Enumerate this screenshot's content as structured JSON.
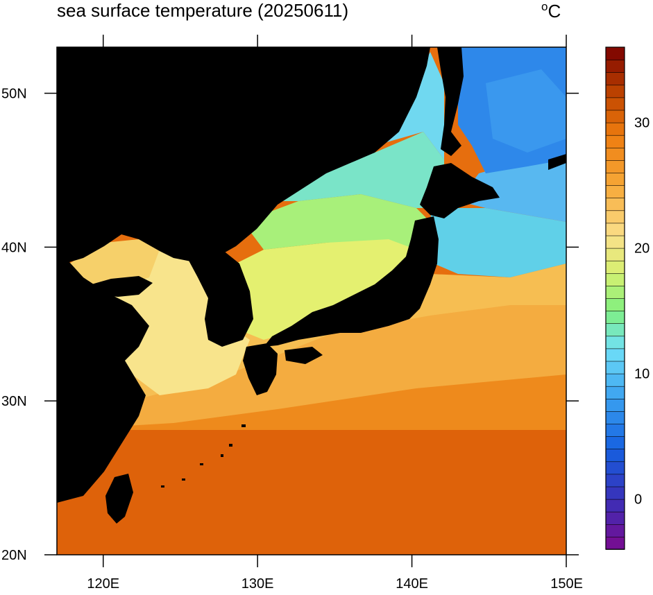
{
  "title": "sea surface temperature (20250611)",
  "unit": {
    "degree": "o",
    "letter": "C"
  },
  "map": {
    "lon_range": [
      117,
      150
    ],
    "lat_range": [
      20,
      53
    ],
    "lon_ticks": [
      {
        "value": 120,
        "label": "120E"
      },
      {
        "value": 130,
        "label": "130E"
      },
      {
        "value": 140,
        "label": "140E"
      },
      {
        "value": 150,
        "label": "150E"
      }
    ],
    "lat_ticks": [
      {
        "value": 50,
        "label": "50N"
      },
      {
        "value": 40,
        "label": "40N"
      },
      {
        "value": 30,
        "label": "30N"
      },
      {
        "value": 20,
        "label": "20N"
      }
    ],
    "land_color": "#000000"
  },
  "colorbar": {
    "min": -4,
    "max": 36,
    "step": 1,
    "ticks": [
      {
        "value": 0,
        "label": "0"
      },
      {
        "value": 10,
        "label": "10"
      },
      {
        "value": 20,
        "label": "20"
      },
      {
        "value": 30,
        "label": "30"
      }
    ],
    "stops": [
      {
        "value": -4,
        "color": "#7b0a8f"
      },
      {
        "value": 0,
        "color": "#3a30b8"
      },
      {
        "value": 4,
        "color": "#1560e0"
      },
      {
        "value": 8,
        "color": "#3aa0f0"
      },
      {
        "value": 12,
        "color": "#70e0f8"
      },
      {
        "value": 15,
        "color": "#80f080"
      },
      {
        "value": 18,
        "color": "#d6f070"
      },
      {
        "value": 21,
        "color": "#fae08a"
      },
      {
        "value": 25,
        "color": "#f6a838"
      },
      {
        "value": 29,
        "color": "#ee7c10"
      },
      {
        "value": 32,
        "color": "#c44a00"
      },
      {
        "value": 36,
        "color": "#7a0000"
      }
    ]
  }
}
